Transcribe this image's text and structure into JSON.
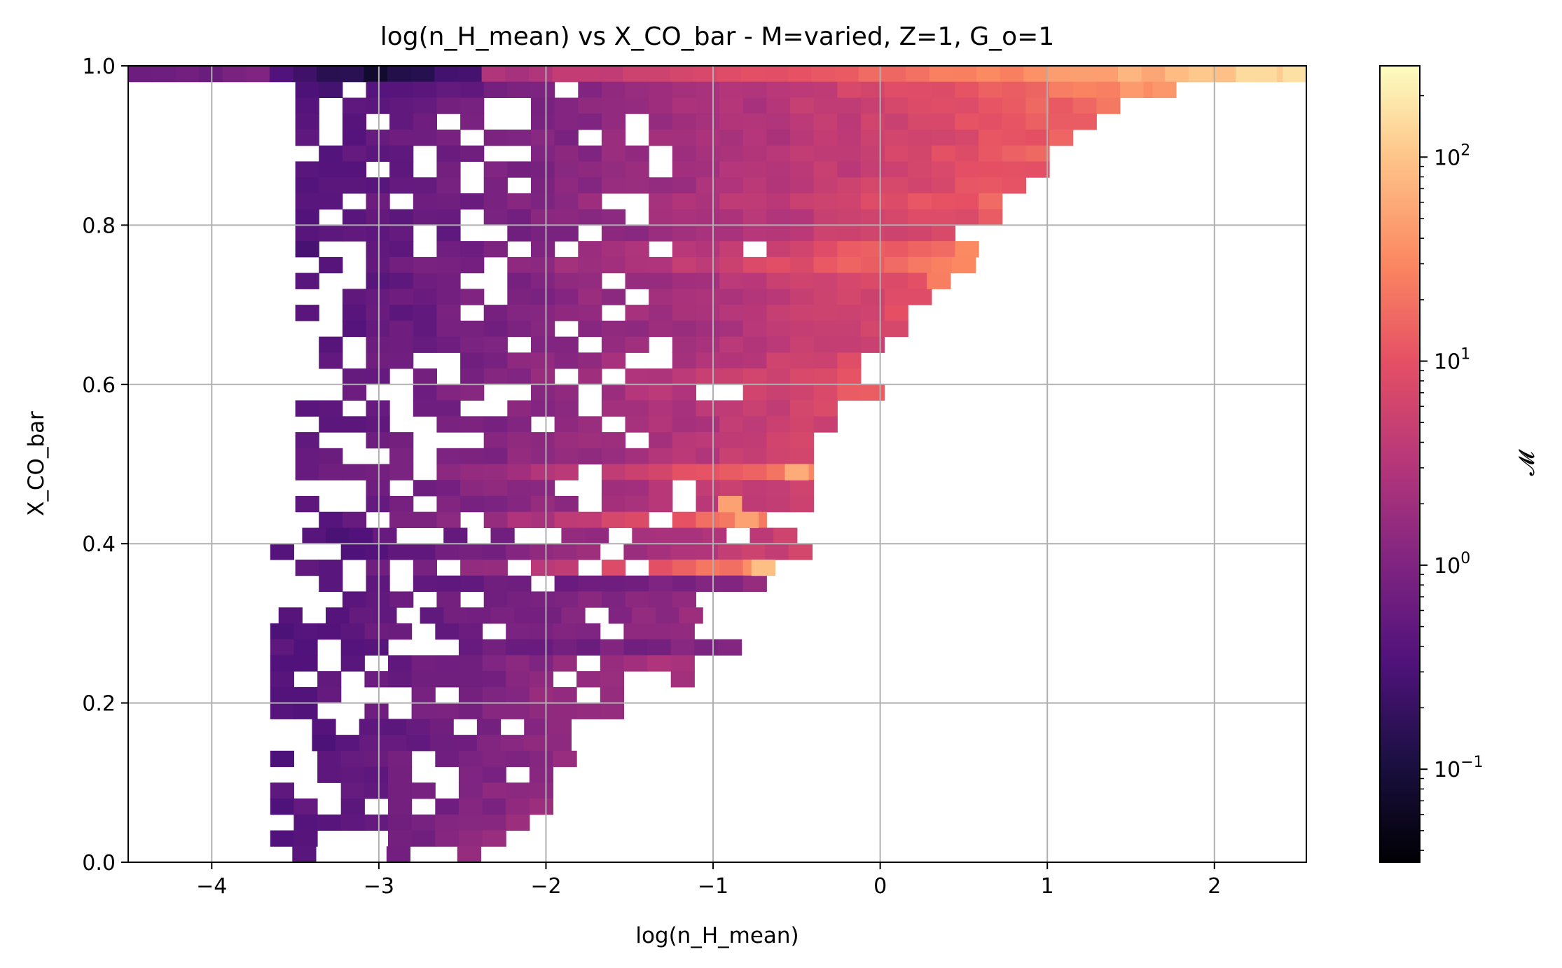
{
  "chart_data": {
    "type": "heatmap",
    "title": "log(n_H_mean) vs X_CO_bar - M=varied, Z=1, G_o=1",
    "xlabel": "log(n_H_mean)",
    "ylabel": "X_CO_bar",
    "xlim": [
      -4.5,
      2.55
    ],
    "ylim": [
      0.0,
      1.0
    ],
    "x_ticks": [
      "−4",
      "−3",
      "−2",
      "−1",
      "0",
      "1",
      "2"
    ],
    "x_tick_values": [
      -4,
      -3,
      -2,
      -1,
      0,
      1,
      2
    ],
    "y_ticks": [
      "0.0",
      "0.2",
      "0.4",
      "0.6",
      "0.8",
      "1.0"
    ],
    "y_tick_values": [
      0.0,
      0.2,
      0.4,
      0.6,
      0.8,
      1.0
    ],
    "grid": true,
    "colormap": "magma",
    "colorbar": {
      "label": "𝓜",
      "scale": "log",
      "range": [
        0.035,
        280
      ],
      "major_ticks": [
        {
          "base": "10",
          "exp": "−1",
          "value": 0.1
        },
        {
          "base": "10",
          "exp": "0",
          "value": 1
        },
        {
          "base": "10",
          "exp": "1",
          "value": 10
        },
        {
          "base": "10",
          "exp": "2",
          "value": 100
        }
      ]
    },
    "bin_width_x": 0.141,
    "bin_height_y": 0.02,
    "row_step_y": 0.02,
    "rows": [
      {
        "y": 0.99,
        "x0": -4.5,
        "x1": 2.55,
        "v0": 0.6,
        "dip": 0.09,
        "dip_x": -3.0,
        "v1": 150
      },
      {
        "y": 0.97,
        "x0": -3.5,
        "x1": 1.7,
        "v0": 0.3,
        "v1": 40
      },
      {
        "y": 0.95,
        "x0": -3.5,
        "x1": 1.4,
        "v0": 0.4,
        "v1": 20
      },
      {
        "y": 0.93,
        "x0": -3.5,
        "x1": 1.3,
        "v0": 0.4,
        "v1": 16
      },
      {
        "y": 0.91,
        "x0": -3.5,
        "x1": 1.1,
        "v0": 0.4,
        "v1": 14
      },
      {
        "y": 0.89,
        "x0": -3.5,
        "x1": 1.0,
        "v0": 0.4,
        "v1": 13
      },
      {
        "y": 0.87,
        "x0": -3.5,
        "x1": 1.0,
        "v0": 0.4,
        "v1": 12
      },
      {
        "y": 0.85,
        "x0": -3.5,
        "x1": 0.85,
        "v0": 0.4,
        "v1": 12
      },
      {
        "y": 0.83,
        "x0": -3.5,
        "x1": 0.75,
        "v0": 0.4,
        "v1": 14
      },
      {
        "y": 0.81,
        "x0": -3.5,
        "x1": 0.7,
        "v0": 0.4,
        "v1": 10
      },
      {
        "y": 0.79,
        "x0": -3.5,
        "x1": 0.45,
        "v0": 0.35,
        "v1": 9
      },
      {
        "y": 0.77,
        "x0": -3.5,
        "x1": 0.55,
        "v0": 0.35,
        "v1": 25
      },
      {
        "y": 0.75,
        "x0": -3.5,
        "x1": 0.45,
        "v0": 0.4,
        "v1": 25
      },
      {
        "y": 0.73,
        "x0": -3.5,
        "x1": 0.3,
        "v0": 0.4,
        "v1": 9
      },
      {
        "y": 0.71,
        "x0": -3.5,
        "x1": 0.3,
        "v0": 0.4,
        "v1": 9
      },
      {
        "y": 0.69,
        "x0": -3.5,
        "x1": 0.15,
        "v0": 0.4,
        "v1": 8
      },
      {
        "y": 0.67,
        "x0": -3.5,
        "x1": 0.15,
        "v0": 0.4,
        "v1": 7
      },
      {
        "y": 0.65,
        "x0": -3.5,
        "x1": 0.0,
        "v0": 0.4,
        "v1": 6
      },
      {
        "y": 0.63,
        "x0": -3.5,
        "x1": -0.15,
        "v0": 0.45,
        "v1": 7
      },
      {
        "y": 0.61,
        "x0": -3.5,
        "x1": -0.15,
        "v0": 0.45,
        "v1": 10
      },
      {
        "y": 0.59,
        "x0": -3.5,
        "x1": 0.0,
        "v0": 0.45,
        "v1": 12
      },
      {
        "y": 0.57,
        "x0": -3.5,
        "x1": -0.25,
        "v0": 0.45,
        "v1": 6
      },
      {
        "y": 0.55,
        "x0": -3.5,
        "x1": -0.25,
        "v0": 0.45,
        "v1": 6
      },
      {
        "y": 0.53,
        "x0": -3.5,
        "x1": -0.4,
        "v0": 0.45,
        "v1": 6
      },
      {
        "y": 0.51,
        "x0": -3.5,
        "x1": -0.4,
        "v0": 0.5,
        "v1": 6
      },
      {
        "y": 0.49,
        "x0": -3.5,
        "x1": -0.4,
        "v0": 0.5,
        "v1": 25
      },
      {
        "y": 0.47,
        "x0": -3.5,
        "x1": -0.4,
        "v0": 0.5,
        "v1": 6
      },
      {
        "y": 0.45,
        "x0": -3.5,
        "x1": -0.4,
        "v0": 0.5,
        "v1": 6
      },
      {
        "y": 0.43,
        "x0": -3.5,
        "x1": -0.7,
        "v0": 0.4,
        "v1": 25
      },
      {
        "y": 0.41,
        "x0": -3.6,
        "x1": -0.4,
        "v0": 0.3,
        "v1": 6
      },
      {
        "y": 0.39,
        "x0": -3.65,
        "x1": -0.4,
        "v0": 0.3,
        "v1": 6
      },
      {
        "y": 0.37,
        "x0": -3.5,
        "x1": -0.7,
        "v0": 0.4,
        "v1": 30
      },
      {
        "y": 0.35,
        "x0": -3.5,
        "x1": -0.7,
        "v0": 0.4,
        "v1": 1.3
      },
      {
        "y": 0.33,
        "x0": -3.5,
        "x1": -1.1,
        "v0": 0.4,
        "v1": 1.5
      },
      {
        "y": 0.31,
        "x0": -3.6,
        "x1": -1.1,
        "v0": 0.4,
        "v1": 1.5
      },
      {
        "y": 0.29,
        "x0": -3.65,
        "x1": -1.1,
        "v0": 0.4,
        "v1": 1.5
      },
      {
        "y": 0.27,
        "x0": -3.65,
        "x1": -0.8,
        "v0": 0.4,
        "v1": 1.2
      },
      {
        "y": 0.25,
        "x0": -3.65,
        "x1": -1.1,
        "v0": 0.4,
        "v1": 2.5
      },
      {
        "y": 0.23,
        "x0": -3.65,
        "x1": -1.1,
        "v0": 0.4,
        "v1": 2.5
      },
      {
        "y": 0.21,
        "x0": -3.65,
        "x1": -1.5,
        "v0": 0.4,
        "v1": 2.0
      },
      {
        "y": 0.19,
        "x0": -3.65,
        "x1": -1.5,
        "v0": 0.4,
        "v1": 2.0
      },
      {
        "y": 0.17,
        "x0": -3.4,
        "x1": -1.8,
        "v0": 0.4,
        "v1": 1.5
      },
      {
        "y": 0.15,
        "x0": -3.4,
        "x1": -1.8,
        "v0": 0.4,
        "v1": 1.5
      },
      {
        "y": 0.13,
        "x0": -3.65,
        "x1": -1.8,
        "v0": 0.4,
        "v1": 1.5
      },
      {
        "y": 0.11,
        "x0": -3.65,
        "x1": -1.8,
        "v0": 0.4,
        "v1": 1.5
      },
      {
        "y": 0.09,
        "x0": -3.65,
        "x1": -1.9,
        "v0": 0.4,
        "v1": 1.5
      },
      {
        "y": 0.07,
        "x0": -3.65,
        "x1": -2.0,
        "v0": 0.4,
        "v1": 1.5
      },
      {
        "y": 0.05,
        "x0": -3.65,
        "x1": -2.1,
        "v0": 0.4,
        "v1": 1.5
      },
      {
        "y": 0.03,
        "x0": -3.65,
        "x1": -2.25,
        "v0": 0.4,
        "v1": 1.5
      },
      {
        "y": 0.01,
        "x0": -3.8,
        "x1": -2.25,
        "v0": 0.4,
        "v1": 1.5
      }
    ],
    "hotspots": [
      {
        "x": -0.5,
        "y": 0.49,
        "v": 60
      },
      {
        "x": -0.9,
        "y": 0.45,
        "v": 50
      },
      {
        "x": -0.8,
        "y": 0.43,
        "v": 50
      },
      {
        "x": -0.7,
        "y": 0.37,
        "v": 90
      },
      {
        "x": 0.5,
        "y": 0.75,
        "v": 30
      },
      {
        "x": 0.35,
        "y": 0.73,
        "v": 25
      },
      {
        "x": 2.3,
        "y": 0.99,
        "v": 150
      },
      {
        "x": 1.7,
        "y": 0.97,
        "v": 40
      }
    ]
  }
}
